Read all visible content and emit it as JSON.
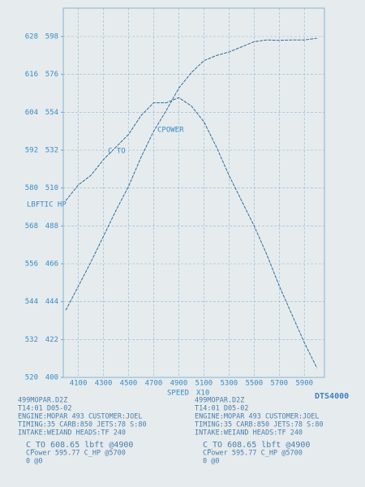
{
  "chart_data": {
    "type": "line",
    "y_label": "LBFTIC HP",
    "x_label": "SPEED",
    "x_unit": "X10",
    "annotations": [
      "C TO",
      "CPOWER"
    ],
    "x": [
      4000,
      4100,
      4200,
      4300,
      4400,
      4500,
      4600,
      4700,
      4800,
      4900,
      5000,
      5100,
      5200,
      5300,
      5400,
      5500,
      5600,
      5700,
      5800,
      5900,
      6000
    ],
    "series": [
      {
        "name": "C TO",
        "color": "#2f6f9e",
        "values": [
          576,
          581,
          584,
          589,
          593,
          597,
          603,
          607,
          607,
          608.65,
          606,
          601,
          593,
          584,
          576,
          568,
          559,
          549,
          540,
          531,
          523
        ]
      },
      {
        "name": "CPOWER",
        "color": "#2f6f9e",
        "axis": "y2",
        "values": [
          439,
          453,
          467,
          482,
          497,
          511,
          528,
          543,
          555,
          568,
          577,
          584,
          587,
          589,
          592,
          595,
          596,
          595.77,
          596,
          596,
          597
        ]
      }
    ],
    "xlim": [
      3980,
      6060
    ],
    "xticks": [
      4100,
      4300,
      4500,
      4700,
      4900,
      5100,
      5300,
      5500,
      5700,
      5900
    ],
    "ylim": [
      520,
      637
    ],
    "yticks": [
      520,
      532,
      544,
      556,
      568,
      580,
      592,
      604,
      616,
      628
    ],
    "y2lim": [
      400,
      614.5
    ],
    "y2ticks": [
      400,
      422,
      444,
      466,
      488,
      510,
      532,
      554,
      576,
      598
    ],
    "grid": true
  },
  "footer": {
    "brand": "DTS4000",
    "blocks": [
      [
        "499MOPAR.D2Z",
        "T14:01 D05-02",
        "ENGINE:MOPAR 493  CUSTOMER:JOEL",
        "TIMING:35 CARB:850  JETS:78 S:80",
        "INTAKE:WEIAND  HEADS:TF 240",
        "C_TO 608.65 lbft @4900",
        "CPower 595.77 C_HP @5700",
        "0  @0"
      ],
      [
        "499MOPAR.D2Z",
        "T14:01 D05-02",
        "ENGINE:MOPAR 493  CUSTOMER:JOEL",
        "TIMING:35 CARB:850  JETS:78 S:80",
        "INTAKE:WEIAND  HEADS:TF 240",
        "C_TO 608.65 lbft @4900",
        "CPower 595.77 C_HP @5700",
        "0  @0"
      ]
    ]
  }
}
